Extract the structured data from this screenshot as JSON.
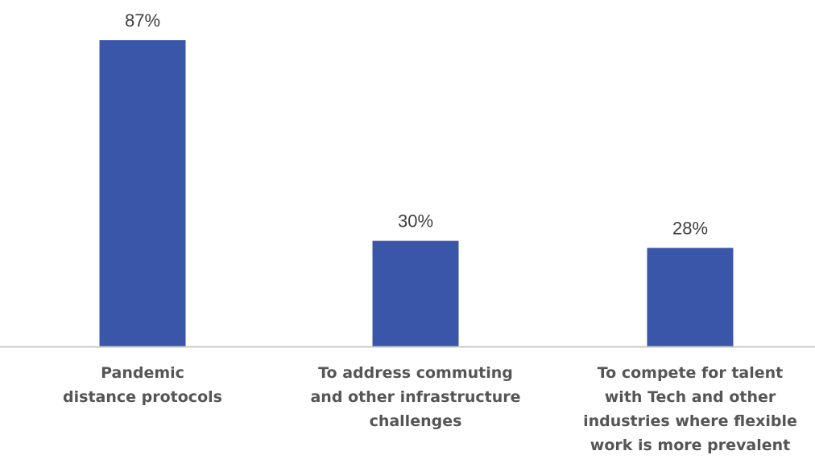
{
  "chart_data": {
    "type": "bar",
    "title": "",
    "xlabel": "",
    "ylabel": "",
    "categories": [
      [
        "Pandemic",
        "distance protocols"
      ],
      [
        "To address commuting",
        "and other infrastructure",
        "challenges"
      ],
      [
        "To compete for talent",
        "with Tech and other",
        "industries where flexible",
        "work is more prevalent"
      ]
    ],
    "values": [
      87,
      30,
      28
    ],
    "value_labels": [
      "87%",
      "30%",
      "28%"
    ],
    "ylim": [
      0,
      100
    ],
    "grid": false,
    "legend": "none",
    "bar_color": "#3a56a8",
    "axis_color": "#c8c8c8"
  }
}
